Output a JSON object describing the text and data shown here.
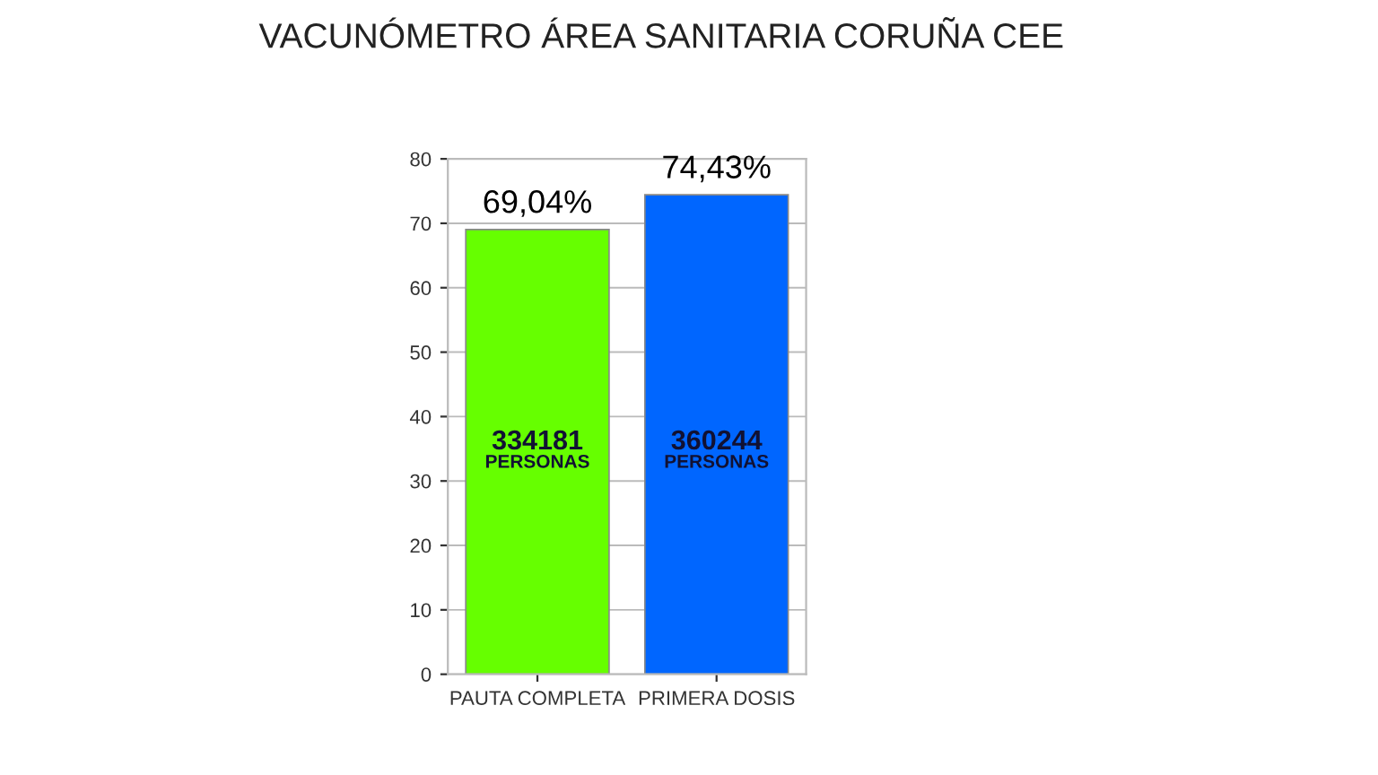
{
  "chart_data": {
    "type": "bar",
    "title": "VACUNÓMETRO ÁREA SANITARIA CORUÑA CEE",
    "categories": [
      "PAUTA COMPLETA",
      "PRIMERA DOSIS"
    ],
    "values": [
      69.04,
      74.43
    ],
    "colors": [
      "#66ff00",
      "#0066ff"
    ],
    "value_labels": [
      "69,04%",
      "74,43%"
    ],
    "annotations": [
      "334181",
      "PERSONAS",
      "360244",
      "PERSONAS"
    ],
    "ylim": [
      0,
      80
    ],
    "yticks": [
      0,
      10,
      20,
      30,
      40,
      50,
      60,
      70,
      80
    ],
    "grid": "y"
  }
}
